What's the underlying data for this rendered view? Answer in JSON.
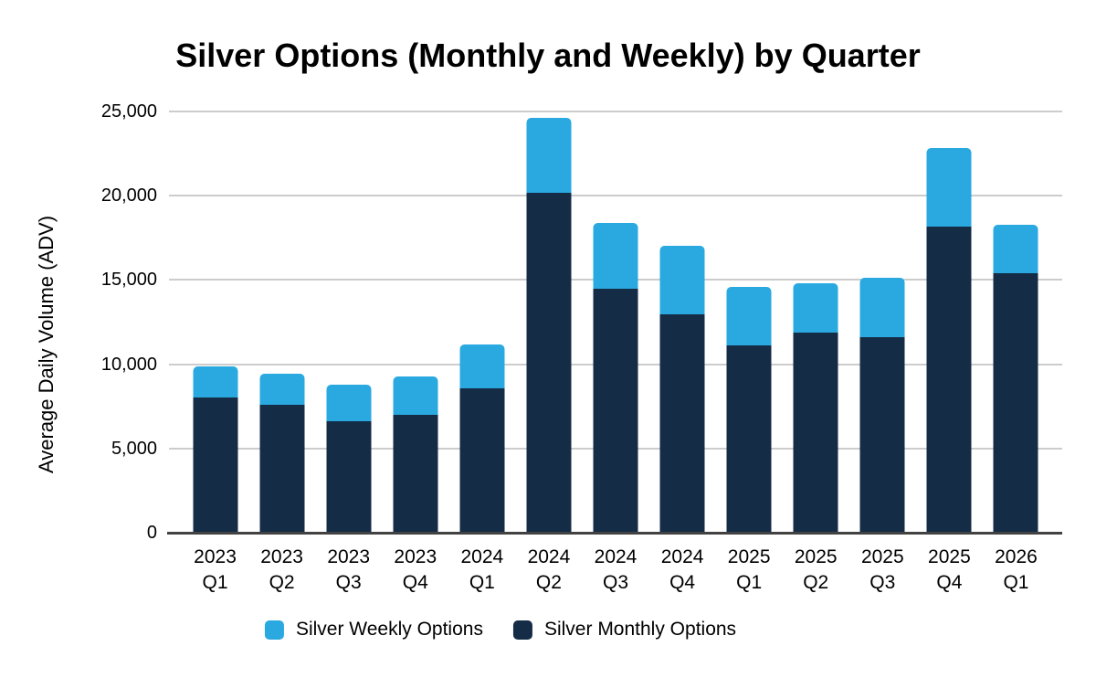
{
  "chart_data": {
    "type": "bar",
    "stacked": true,
    "title": "Silver Options (Monthly and Weekly) by Quarter",
    "xlabel": "",
    "ylabel": "Average Daily Volume (ADV)",
    "ylim": [
      0,
      25000
    ],
    "y_ticks": [
      0,
      5000,
      10000,
      15000,
      20000,
      25000
    ],
    "y_tick_labels": [
      "0",
      "5,000",
      "10,000",
      "15,000",
      "20,000",
      "25,000"
    ],
    "grid": "horizontal-only",
    "legend_position": "bottom-center",
    "categories": [
      "2023 Q1",
      "2023 Q2",
      "2023 Q3",
      "2023 Q4",
      "2024 Q1",
      "2024 Q2",
      "2024 Q3",
      "2024 Q4",
      "2025 Q1",
      "2025 Q2",
      "2025 Q3",
      "2025 Q4",
      "2026 Q1"
    ],
    "series": [
      {
        "name": "Silver Weekly Options",
        "color": "#2AA9E0",
        "values": [
          1800,
          1850,
          2200,
          2300,
          2600,
          4450,
          3900,
          4100,
          3500,
          2900,
          3550,
          4700,
          2900
        ]
      },
      {
        "name": "Silver Monthly Options",
        "color": "#152C47",
        "values": [
          8050,
          7600,
          6600,
          7000,
          8550,
          20150,
          14500,
          12950,
          11100,
          11900,
          11600,
          18150,
          15400
        ]
      }
    ],
    "stack_order_bottom_to_top": [
      "Silver Monthly Options",
      "Silver Weekly Options"
    ],
    "stacked_totals": [
      9850,
      9450,
      8800,
      9300,
      11150,
      24600,
      18400,
      17050,
      14600,
      14800,
      15150,
      22850,
      18300
    ]
  },
  "colors": {
    "background": "#FFFFFF",
    "gridline": "#CCCCCC",
    "axis_line": "#424242",
    "text": "#000000",
    "weekly_blue": "#2AA9E0",
    "monthly_navy": "#152C47"
  }
}
